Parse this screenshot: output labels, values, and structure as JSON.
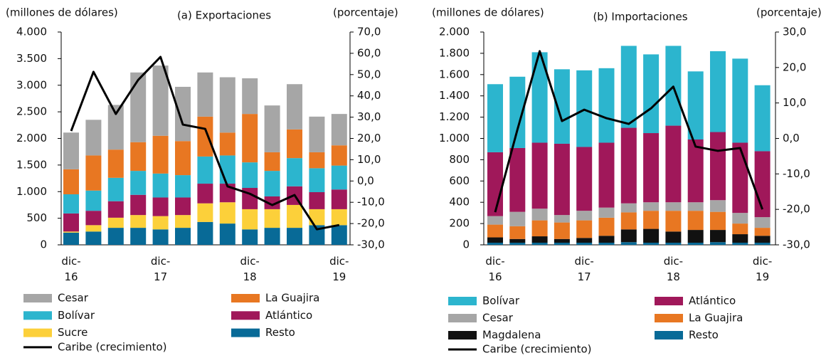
{
  "chart_data": [
    {
      "type": "bar",
      "stacked": true,
      "title": "(a)  Exportaciones",
      "y_label": "(millones  de dólares)",
      "y2_label": "(porcentaje)",
      "categories": [
        "dic-\n16",
        null,
        null,
        null,
        "dic-\n17",
        null,
        null,
        null,
        "dic-\n18",
        null,
        null,
        null,
        "dic-\n19"
      ],
      "ylim": [
        0,
        4000
      ],
      "yticks": [
        0,
        500,
        {
          "value": 1000,
          "label": "1.000"
        },
        {
          "value": 1500,
          "label": "1.500"
        },
        {
          "value": 2000,
          "label": "2.000"
        },
        {
          "value": 2500,
          "label": "2.500"
        },
        {
          "value": 3000,
          "label": "3.000"
        },
        {
          "value": 3500,
          "label": "3.500"
        },
        {
          "value": 4000,
          "label": "4.000"
        }
      ],
      "y2lim": [
        -30,
        70
      ],
      "y2ticks": [
        {
          "value": -30,
          "label": "-30,0"
        },
        {
          "value": -20,
          "label": "-20,0"
        },
        {
          "value": -10,
          "label": "-10,0"
        },
        {
          "value": 0,
          "label": "0,0"
        },
        {
          "value": 10,
          "label": "10,0"
        },
        {
          "value": 20,
          "label": "20,0"
        },
        {
          "value": 30,
          "label": "30,0"
        },
        {
          "value": 40,
          "label": "40,0"
        },
        {
          "value": 50,
          "label": "50,0"
        },
        {
          "value": 60,
          "label": "60,0"
        },
        {
          "value": 70,
          "label": "70,0"
        }
      ],
      "series": [
        {
          "name": "Cesar",
          "color": "#a6a6a6",
          "values": [
            690,
            670,
            840,
            1310,
            1320,
            1020,
            830,
            1040,
            670,
            880,
            850,
            670,
            590
          ]
        },
        {
          "name": "La Guajira",
          "color": "#e87722",
          "values": [
            470,
            660,
            530,
            540,
            710,
            640,
            750,
            430,
            910,
            350,
            540,
            300,
            380
          ]
        },
        {
          "name": "Bolívar",
          "color": "#2cb5ce",
          "values": [
            360,
            380,
            440,
            450,
            450,
            420,
            510,
            530,
            480,
            480,
            530,
            450,
            450
          ]
        },
        {
          "name": "Atlántico",
          "color": "#a0185a",
          "values": [
            340,
            270,
            310,
            380,
            350,
            330,
            370,
            350,
            400,
            240,
            350,
            320,
            370
          ]
        },
        {
          "name": "Sucre",
          "color": "#fcd03a",
          "values": [
            20,
            120,
            190,
            240,
            250,
            240,
            350,
            400,
            380,
            350,
            430,
            300,
            300
          ]
        },
        {
          "name": "Resto",
          "color": "#086a97",
          "values": [
            230,
            250,
            320,
            320,
            290,
            320,
            430,
            400,
            290,
            320,
            320,
            370,
            370
          ]
        },
        {
          "name": "Caribe (crecimiento)",
          "type": "line",
          "axis": "y2",
          "color": "#000000",
          "values": [
            23.5,
            51.3,
            31.5,
            47.5,
            58.3,
            26.5,
            24.5,
            -2.5,
            -6,
            -11.3,
            -6.6,
            -22.7,
            -20.7
          ]
        }
      ]
    },
    {
      "type": "bar",
      "stacked": true,
      "title": "(b)  Importaciones",
      "y_label": "(millones  de dólares)",
      "y2_label": "(porcentaje)",
      "categories": [
        "dic-\n16",
        null,
        null,
        null,
        "dic-\n17",
        null,
        null,
        null,
        "dic-\n18",
        null,
        null,
        null,
        "dic-\n19"
      ],
      "ylim": [
        0,
        2000
      ],
      "yticks": [
        0,
        200,
        400,
        600,
        800,
        {
          "value": 1000,
          "label": "1.000"
        },
        {
          "value": 1200,
          "label": "1.200"
        },
        {
          "value": 1400,
          "label": "1.400"
        },
        {
          "value": 1600,
          "label": "1.600"
        },
        {
          "value": 1800,
          "label": "1.800"
        },
        {
          "value": 2000,
          "label": "2.000"
        }
      ],
      "y2lim": [
        -30,
        30
      ],
      "y2ticks": [
        {
          "value": -30,
          "label": "-30,0"
        },
        {
          "value": -20,
          "label": "-20,0"
        },
        {
          "value": -10,
          "label": "-10,0"
        },
        {
          "value": 0,
          "label": "0,0"
        },
        {
          "value": 10,
          "label": "10,0"
        },
        {
          "value": 20,
          "label": "20,0"
        },
        {
          "value": 30,
          "label": "30,0"
        }
      ],
      "series": [
        {
          "name": "Bolívar",
          "color": "#2cb5ce",
          "values": [
            640,
            670,
            850,
            700,
            720,
            700,
            770,
            740,
            750,
            640,
            760,
            790,
            620
          ]
        },
        {
          "name": "Atlántico",
          "color": "#a0185a",
          "values": [
            600,
            600,
            620,
            670,
            600,
            610,
            710,
            650,
            720,
            590,
            640,
            660,
            620
          ]
        },
        {
          "name": "Cesar",
          "color": "#a6a6a6",
          "values": [
            80,
            135,
            110,
            70,
            90,
            95,
            85,
            80,
            80,
            80,
            110,
            100,
            100
          ]
        },
        {
          "name": "La Guajira",
          "color": "#e87722",
          "values": [
            120,
            120,
            150,
            155,
            165,
            170,
            160,
            170,
            195,
            180,
            170,
            100,
            75
          ]
        },
        {
          "name": "Magdalena",
          "color": "#111111",
          "values": [
            50,
            35,
            60,
            35,
            45,
            65,
            120,
            130,
            105,
            120,
            115,
            80,
            65
          ]
        },
        {
          "name": "Resto",
          "color": "#086a97",
          "values": [
            20,
            20,
            20,
            20,
            20,
            20,
            25,
            20,
            20,
            20,
            25,
            20,
            20
          ]
        },
        {
          "name": "Caribe (crecimiento)",
          "type": "line",
          "axis": "y2",
          "color": "#000000",
          "values": [
            -20.8,
            2.5,
            24.6,
            4.9,
            8.1,
            5.7,
            4.1,
            8.5,
            14.6,
            -2.3,
            -3.5,
            -2.7,
            -20
          ]
        }
      ]
    }
  ]
}
